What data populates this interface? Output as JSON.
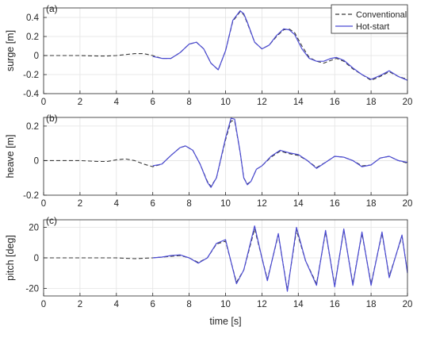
{
  "colors": {
    "conventional": "#3a3a3a",
    "hot_start": "#4b4bd4",
    "grid": "#e3e3e3",
    "axis": "#262626"
  },
  "legend": {
    "placement": "top-right",
    "entries": [
      "Conventional",
      "Hot-start"
    ]
  },
  "chart_data": [
    {
      "type": "line",
      "panel_label": "(a)",
      "xlabel": "",
      "ylabel": "surge [m]",
      "xlim": [
        0,
        20
      ],
      "ylim": [
        -0.4,
        0.5
      ],
      "xticks": [
        0,
        2,
        4,
        6,
        8,
        10,
        12,
        14,
        16,
        18,
        20
      ],
      "yticks": [
        -0.4,
        -0.2,
        0,
        0.2,
        0.4
      ],
      "ytick_labels": [
        "-0.4",
        "-0.2",
        "0",
        "0.2",
        "0.4"
      ],
      "grid": true,
      "series": [
        {
          "name": "Conventional",
          "style": "dashed",
          "x": [
            0,
            1,
            2,
            3,
            3.5,
            4,
            4.5,
            5,
            5.5,
            6,
            6.5,
            7,
            7.5,
            8,
            8.4,
            8.8,
            9.2,
            9.6,
            10,
            10.4,
            10.8,
            11,
            11.2,
            11.6,
            12,
            12.4,
            12.8,
            13.2,
            13.5,
            13.8,
            14.2,
            14.6,
            15,
            15.4,
            15.8,
            16.1,
            16.5,
            17,
            17.5,
            18,
            18.5,
            19,
            19.5,
            20
          ],
          "y": [
            0,
            0,
            0,
            -0.005,
            -0.005,
            0,
            0.01,
            0.02,
            0.02,
            0,
            -0.03,
            -0.03,
            0.03,
            0.12,
            0.14,
            0.07,
            -0.08,
            -0.15,
            0.05,
            0.36,
            0.46,
            0.43,
            0.34,
            0.14,
            0.07,
            0.11,
            0.2,
            0.27,
            0.28,
            0.24,
            0.1,
            -0.02,
            -0.06,
            -0.08,
            -0.05,
            -0.03,
            -0.06,
            -0.14,
            -0.2,
            -0.26,
            -0.22,
            -0.17,
            -0.22,
            -0.25
          ]
        },
        {
          "name": "Hot-start",
          "style": "solid",
          "x": [
            6,
            6.5,
            7,
            7.5,
            8,
            8.4,
            8.8,
            9.2,
            9.6,
            10,
            10.4,
            10.8,
            11,
            11.2,
            11.6,
            12,
            12.4,
            12.8,
            13.2,
            13.5,
            13.8,
            14.2,
            14.6,
            15,
            15.4,
            15.8,
            16.1,
            16.5,
            17,
            17.5,
            18,
            18.5,
            19,
            19.5,
            20
          ],
          "y": [
            -0.01,
            -0.03,
            -0.03,
            0.03,
            0.12,
            0.14,
            0.07,
            -0.08,
            -0.15,
            0.05,
            0.37,
            0.47,
            0.44,
            0.35,
            0.14,
            0.07,
            0.11,
            0.21,
            0.28,
            0.27,
            0.22,
            0.07,
            -0.03,
            -0.06,
            -0.06,
            -0.03,
            -0.02,
            -0.05,
            -0.13,
            -0.2,
            -0.25,
            -0.21,
            -0.16,
            -0.22,
            -0.26
          ]
        }
      ]
    },
    {
      "type": "line",
      "panel_label": "(b)",
      "xlabel": "",
      "ylabel": "heave [m]",
      "xlim": [
        0,
        20
      ],
      "ylim": [
        -0.2,
        0.25
      ],
      "xticks": [
        0,
        2,
        4,
        6,
        8,
        10,
        12,
        14,
        16,
        18,
        20
      ],
      "yticks": [
        -0.2,
        0,
        0.2
      ],
      "ytick_labels": [
        "-0.2",
        "0",
        "0.2"
      ],
      "grid": true,
      "series": [
        {
          "name": "Conventional",
          "style": "dashed",
          "x": [
            0,
            1,
            2,
            3,
            3.5,
            4,
            4.5,
            5,
            5.5,
            6,
            6.5,
            7,
            7.5,
            7.8,
            8.2,
            8.6,
            9,
            9.2,
            9.5,
            10,
            10.3,
            10.5,
            10.8,
            11,
            11.2,
            11.4,
            11.7,
            12,
            12.5,
            13,
            13.5,
            14,
            14.5,
            15,
            15.5,
            16,
            16.5,
            17,
            17.5,
            18,
            18.5,
            19,
            19.5,
            20
          ],
          "y": [
            0,
            0,
            0,
            -0.005,
            -0.005,
            0.005,
            0.01,
            0,
            -0.02,
            -0.035,
            -0.02,
            0.03,
            0.075,
            0.085,
            0.06,
            -0.02,
            -0.12,
            -0.15,
            -0.1,
            0.12,
            0.23,
            0.23,
            0.05,
            -0.1,
            -0.135,
            -0.12,
            -0.05,
            -0.03,
            0.02,
            0.055,
            0.04,
            0.03,
            0,
            -0.04,
            -0.01,
            0.025,
            0.02,
            0,
            -0.03,
            -0.025,
            0.015,
            0.025,
            0,
            -0.015
          ]
        },
        {
          "name": "Hot-start",
          "style": "solid",
          "x": [
            6,
            6.5,
            7,
            7.5,
            7.8,
            8.2,
            8.6,
            9,
            9.2,
            9.5,
            10,
            10.3,
            10.5,
            10.8,
            11,
            11.2,
            11.4,
            11.7,
            12,
            12.5,
            13,
            13.5,
            14,
            14.5,
            15,
            15.5,
            16,
            16.5,
            17,
            17.5,
            18,
            18.5,
            19,
            19.5,
            20
          ],
          "y": [
            -0.03,
            -0.02,
            0.03,
            0.075,
            0.085,
            0.06,
            -0.02,
            -0.125,
            -0.155,
            -0.1,
            0.13,
            0.245,
            0.24,
            0.05,
            -0.1,
            -0.14,
            -0.12,
            -0.05,
            -0.03,
            0.025,
            0.06,
            0.045,
            0.035,
            0,
            -0.045,
            -0.01,
            0.025,
            0.02,
            0,
            -0.035,
            -0.025,
            0.015,
            0.025,
            0,
            -0.01
          ]
        }
      ]
    },
    {
      "type": "line",
      "panel_label": "(c)",
      "xlabel": "time [s]",
      "ylabel": "pitch [deg]",
      "xlim": [
        0,
        20
      ],
      "ylim": [
        -25,
        25
      ],
      "xticks": [
        0,
        2,
        4,
        6,
        8,
        10,
        12,
        14,
        16,
        18,
        20
      ],
      "yticks": [
        -20,
        0,
        20
      ],
      "ytick_labels": [
        "-20",
        "0",
        "20"
      ],
      "grid": true,
      "series": [
        {
          "name": "Conventional",
          "style": "dashed",
          "x": [
            0,
            2,
            4,
            5,
            6,
            6.5,
            7,
            7.5,
            8,
            8.5,
            9,
            9.5,
            10,
            10.6,
            11,
            11.6,
            12,
            12.3,
            12.9,
            13.4,
            13.9,
            14.4,
            15,
            15.5,
            16,
            16.5,
            17,
            17.5,
            18,
            18.6,
            19,
            19.7,
            20
          ],
          "y": [
            0,
            0,
            0,
            -0.5,
            0,
            0.5,
            1,
            1.5,
            0,
            -3,
            0,
            9,
            11,
            -16,
            -8,
            19,
            0,
            -14,
            15,
            -21,
            18,
            -2,
            -17,
            17,
            -18,
            18,
            -17,
            16,
            -17,
            16,
            -12,
            14,
            -9
          ]
        },
        {
          "name": "Hot-start",
          "style": "solid",
          "x": [
            6,
            6.5,
            7,
            7.5,
            8,
            8.5,
            9,
            9.5,
            10,
            10.6,
            11,
            11.6,
            12,
            12.3,
            12.9,
            13.4,
            13.9,
            14.4,
            15,
            15.5,
            16,
            16.5,
            17,
            17.5,
            18,
            18.6,
            19,
            19.7,
            20
          ],
          "y": [
            0,
            0.5,
            1.5,
            2,
            0,
            -3.5,
            0,
            9.5,
            12,
            -17,
            -8,
            21,
            0,
            -15,
            16,
            -22,
            20,
            -2,
            -18,
            18,
            -19,
            19,
            -18,
            17,
            -18,
            17,
            -13,
            15,
            -10
          ]
        }
      ]
    }
  ]
}
